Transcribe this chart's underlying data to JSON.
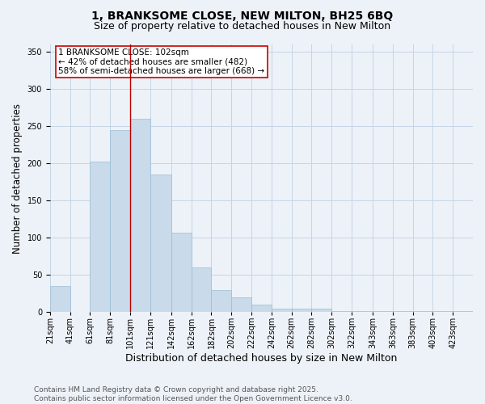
{
  "title": "1, BRANKSOME CLOSE, NEW MILTON, BH25 6BQ",
  "subtitle": "Size of property relative to detached houses in New Milton",
  "xlabel": "Distribution of detached houses by size in New Milton",
  "ylabel": "Number of detached properties",
  "bin_labels": [
    "21sqm",
    "41sqm",
    "61sqm",
    "81sqm",
    "101sqm",
    "121sqm",
    "142sqm",
    "162sqm",
    "182sqm",
    "202sqm",
    "222sqm",
    "242sqm",
    "262sqm",
    "282sqm",
    "302sqm",
    "322sqm",
    "343sqm",
    "363sqm",
    "383sqm",
    "403sqm",
    "423sqm"
  ],
  "bin_lefts": [
    21,
    41,
    61,
    81,
    101,
    121,
    142,
    162,
    182,
    202,
    222,
    242,
    262,
    282,
    302,
    322,
    343,
    363,
    383,
    403,
    423
  ],
  "bin_widths": [
    20,
    20,
    20,
    20,
    20,
    21,
    20,
    20,
    20,
    20,
    20,
    20,
    20,
    20,
    20,
    21,
    20,
    20,
    20,
    20,
    20
  ],
  "bar_heights": [
    35,
    0,
    202,
    245,
    260,
    185,
    107,
    60,
    30,
    20,
    10,
    5,
    5,
    5,
    2,
    1,
    2,
    1,
    1,
    1,
    2
  ],
  "bar_color": "#c9daea",
  "bar_edgecolor": "#9bbdd4",
  "vline_color": "#bb0000",
  "vline_x": 101,
  "annotation_text": "1 BRANKSOME CLOSE: 102sqm\n← 42% of detached houses are smaller (482)\n58% of semi-detached houses are larger (668) →",
  "annotation_box_edgecolor": "#cc0000",
  "annotation_box_facecolor": "#ffffff",
  "ylim": [
    0,
    360
  ],
  "yticks": [
    0,
    50,
    100,
    150,
    200,
    250,
    300,
    350
  ],
  "grid_color": "#c5d5e5",
  "background_color": "#edf2f8",
  "footnote": "Contains HM Land Registry data © Crown copyright and database right 2025.\nContains public sector information licensed under the Open Government Licence v3.0.",
  "title_fontsize": 10,
  "subtitle_fontsize": 9,
  "xlabel_fontsize": 9,
  "ylabel_fontsize": 8.5,
  "tick_fontsize": 7,
  "annotation_fontsize": 7.5,
  "footnote_fontsize": 6.5
}
